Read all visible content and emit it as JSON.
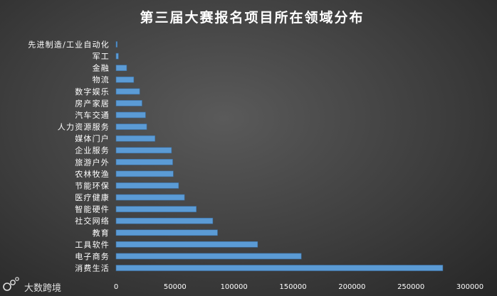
{
  "chart_data": {
    "type": "bar",
    "orientation": "horizontal",
    "title": "第三届大赛报名项目所在领域分布",
    "xlabel": "",
    "ylabel": "",
    "xlim": [
      0,
      300000
    ],
    "x_ticks": [
      0,
      50000,
      100000,
      150000,
      200000,
      250000,
      300000
    ],
    "grid": false,
    "legend": "none",
    "bar_color": "#5b9bd5",
    "categories": [
      "先进制造/工业自动化",
      "军工",
      "金融",
      "物流",
      "数字娱乐",
      "房产家居",
      "汽车交通",
      "人力资源服务",
      "媒体门户",
      "企业服务",
      "旅游户外",
      "农林牧渔",
      "节能环保",
      "医疗健康",
      "智能硬件",
      "社交网络",
      "教育",
      "工具软件",
      "电子商务",
      "消费生活"
    ],
    "values": [
      1000,
      2000,
      9000,
      15000,
      20000,
      22000,
      25000,
      26000,
      33000,
      47000,
      48000,
      48500,
      53000,
      58000,
      68000,
      82000,
      86000,
      120000,
      157000,
      277000
    ]
  },
  "watermark": {
    "text": "大数跨境",
    "icon": "brand-logo-icon"
  }
}
